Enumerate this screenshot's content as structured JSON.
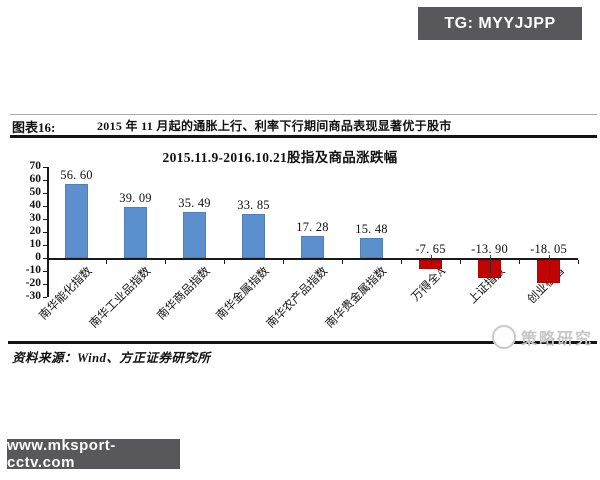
{
  "overlays": {
    "tg_badge": "TG: MYYJJPP",
    "site_badge": "www.mksport-cctv.com",
    "badge_bg": "#58585a"
  },
  "figure": {
    "label": "图表16:",
    "title": "2015 年 11 月起的通胀上行、利率下行期间商品表现显著优于股市",
    "source": "资料来源：Wind、方正证券研究所",
    "watermark": "策略研究"
  },
  "chart_data": {
    "type": "bar",
    "title": "2015.11.9-2016.10.21股指及商品涨跌幅",
    "categories": [
      "南华能化指数",
      "南华工业品指数",
      "南华商品指数",
      "南华金属指数",
      "南华农产品指数",
      "南华贵金属指数",
      "万得全A",
      "上证指数",
      "创业板指"
    ],
    "values": [
      56.6,
      39.09,
      35.49,
      33.85,
      17.28,
      15.48,
      -7.65,
      -13.9,
      -18.05
    ],
    "value_labels": [
      "56. 60",
      "39. 09",
      "35. 49",
      "33. 85",
      "17. 28",
      "15. 48",
      "-7. 65",
      "-13. 90",
      "-18. 05"
    ],
    "y_ticks": [
      70,
      60,
      50,
      40,
      30,
      20,
      10,
      0,
      -10,
      -20,
      -30
    ],
    "ylim": [
      -30,
      70
    ],
    "xlabel": "",
    "ylabel": "",
    "grid": false,
    "legend": false,
    "positive_color": "#5b8fce",
    "negative_color": "#c00504",
    "axis_color": "#1a1a1a"
  }
}
